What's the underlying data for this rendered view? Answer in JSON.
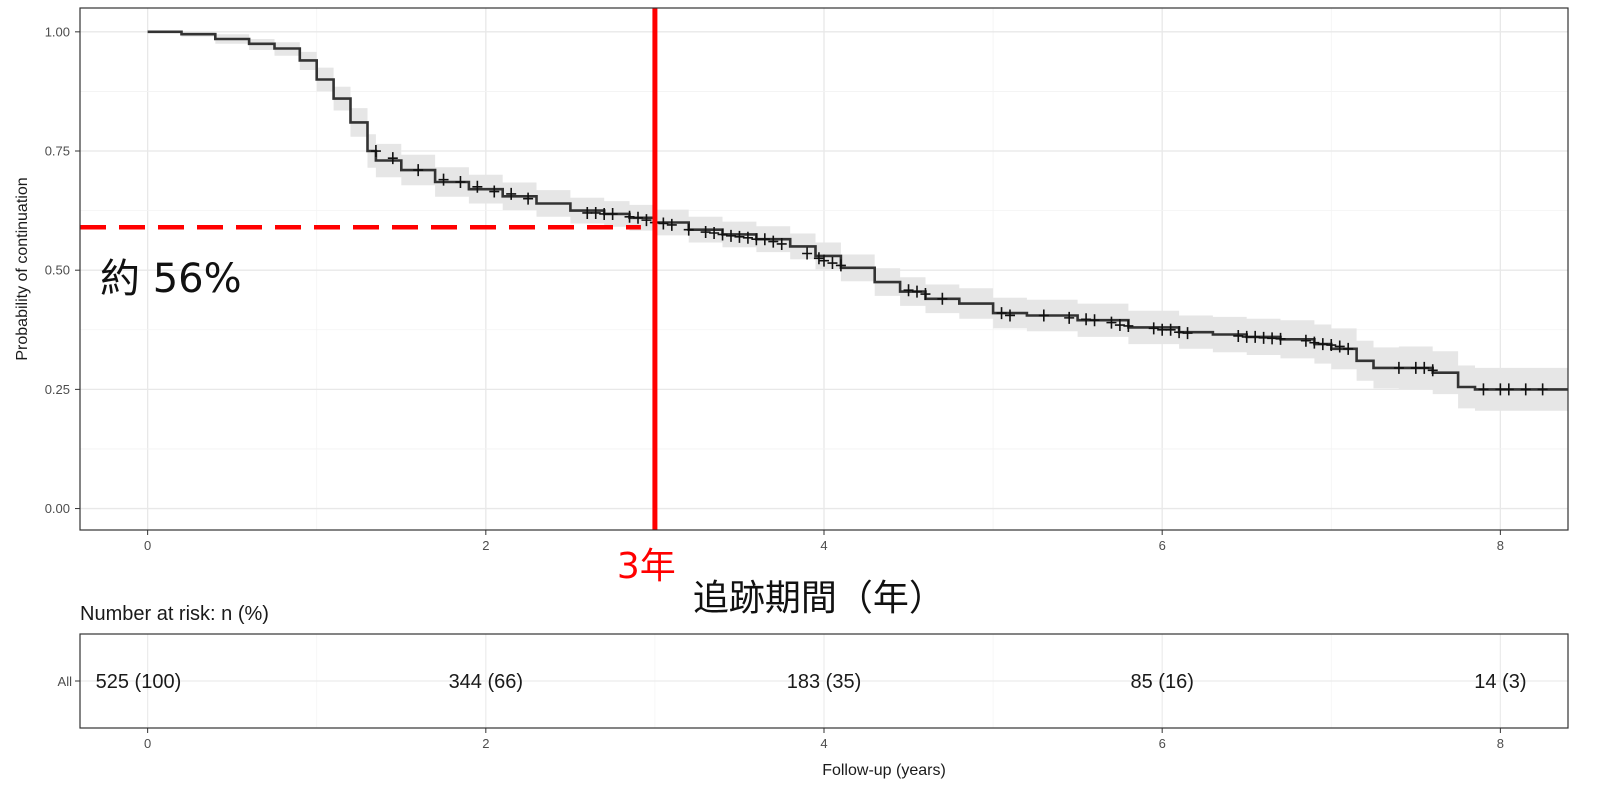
{
  "chart_data": {
    "type": "line",
    "subtype": "kaplan-meier",
    "title": "",
    "xlabel": "Follow-up (years)",
    "ylabel": "Probability of continuation",
    "xlim": [
      -0.4,
      8.4
    ],
    "ylim": [
      -0.045,
      1.05
    ],
    "x_ticks": [
      0,
      2,
      4,
      6,
      8
    ],
    "x_tick_labels": [
      "0",
      "2",
      "4",
      "6",
      "8"
    ],
    "y_ticks": [
      0.0,
      0.25,
      0.5,
      0.75,
      1.0
    ],
    "y_tick_labels": [
      "0.00",
      "0.25",
      "0.50",
      "0.75",
      "1.00"
    ],
    "grid": true,
    "series": [
      {
        "color": "#333333",
        "ci_color": "#e6e6e6",
        "x": [
          0,
          0.2,
          0.4,
          0.6,
          0.75,
          0.9,
          1.0,
          1.1,
          1.2,
          1.3,
          1.35,
          1.5,
          1.7,
          1.9,
          2.1,
          2.3,
          2.5,
          2.7,
          2.85,
          3.0,
          3.2,
          3.4,
          3.6,
          3.8,
          3.95,
          4.1,
          4.3,
          4.45,
          4.6,
          4.8,
          5.0,
          5.2,
          5.5,
          5.8,
          6.1,
          6.3,
          6.5,
          6.7,
          6.9,
          7.0,
          7.15,
          7.25,
          7.4,
          7.6,
          7.75,
          7.85,
          8.0,
          8.2,
          8.4
        ],
        "y": [
          1.0,
          0.995,
          0.985,
          0.975,
          0.965,
          0.94,
          0.9,
          0.86,
          0.81,
          0.75,
          0.73,
          0.71,
          0.685,
          0.67,
          0.655,
          0.64,
          0.625,
          0.618,
          0.61,
          0.6,
          0.585,
          0.575,
          0.565,
          0.55,
          0.53,
          0.505,
          0.475,
          0.455,
          0.44,
          0.43,
          0.41,
          0.405,
          0.395,
          0.38,
          0.37,
          0.365,
          0.36,
          0.355,
          0.345,
          0.335,
          0.31,
          0.295,
          0.295,
          0.285,
          0.255,
          0.25,
          0.25,
          0.25,
          0.25
        ],
        "ci_upper": [
          1.0,
          1.0,
          0.995,
          0.985,
          0.978,
          0.958,
          0.925,
          0.885,
          0.84,
          0.785,
          0.765,
          0.742,
          0.716,
          0.7,
          0.684,
          0.668,
          0.652,
          0.645,
          0.637,
          0.627,
          0.612,
          0.602,
          0.592,
          0.577,
          0.558,
          0.533,
          0.504,
          0.485,
          0.47,
          0.462,
          0.442,
          0.438,
          0.43,
          0.415,
          0.405,
          0.402,
          0.398,
          0.395,
          0.386,
          0.378,
          0.352,
          0.338,
          0.34,
          0.33,
          0.3,
          0.295,
          0.295,
          0.295,
          0.295
        ],
        "ci_lower": [
          1.0,
          0.99,
          0.975,
          0.962,
          0.95,
          0.92,
          0.875,
          0.835,
          0.78,
          0.715,
          0.695,
          0.678,
          0.654,
          0.64,
          0.626,
          0.612,
          0.598,
          0.591,
          0.583,
          0.573,
          0.558,
          0.548,
          0.538,
          0.523,
          0.502,
          0.477,
          0.446,
          0.425,
          0.41,
          0.398,
          0.378,
          0.372,
          0.36,
          0.345,
          0.335,
          0.328,
          0.322,
          0.315,
          0.304,
          0.292,
          0.268,
          0.252,
          0.25,
          0.24,
          0.21,
          0.205,
          0.205,
          0.205,
          0.205
        ],
        "censor_x": [
          1.35,
          1.45,
          1.6,
          1.75,
          1.85,
          1.95,
          2.05,
          2.15,
          2.25,
          2.6,
          2.65,
          2.7,
          2.75,
          2.85,
          2.9,
          2.95,
          3.0,
          3.05,
          3.1,
          3.2,
          3.3,
          3.35,
          3.4,
          3.45,
          3.5,
          3.55,
          3.6,
          3.65,
          3.7,
          3.75,
          3.9,
          3.97,
          4.0,
          4.05,
          4.1,
          4.5,
          4.55,
          4.6,
          4.7,
          5.05,
          5.1,
          5.3,
          5.45,
          5.55,
          5.6,
          5.7,
          5.75,
          5.8,
          5.95,
          6.0,
          6.05,
          6.1,
          6.15,
          6.45,
          6.5,
          6.55,
          6.6,
          6.65,
          6.7,
          6.85,
          6.9,
          6.95,
          7.0,
          7.05,
          7.1,
          7.4,
          7.5,
          7.55,
          7.6,
          7.9,
          8.0,
          8.05,
          8.15,
          8.25
        ],
        "censor_y": [
          0.75,
          0.735,
          0.71,
          0.69,
          0.685,
          0.675,
          0.665,
          0.66,
          0.65,
          0.62,
          0.62,
          0.618,
          0.618,
          0.612,
          0.61,
          0.605,
          0.6,
          0.598,
          0.595,
          0.585,
          0.58,
          0.578,
          0.575,
          0.572,
          0.57,
          0.568,
          0.565,
          0.565,
          0.56,
          0.555,
          0.535,
          0.525,
          0.52,
          0.515,
          0.51,
          0.458,
          0.455,
          0.45,
          0.44,
          0.41,
          0.405,
          0.405,
          0.4,
          0.397,
          0.395,
          0.39,
          0.385,
          0.383,
          0.378,
          0.375,
          0.375,
          0.37,
          0.368,
          0.362,
          0.36,
          0.36,
          0.358,
          0.357,
          0.356,
          0.352,
          0.348,
          0.345,
          0.343,
          0.34,
          0.335,
          0.295,
          0.295,
          0.295,
          0.29,
          0.25,
          0.25,
          0.25,
          0.25,
          0.25
        ]
      }
    ],
    "annotations": {
      "percent_text": "約 56%",
      "percent_y": 0.59,
      "marker_x": 3.0,
      "marker_label": "3年",
      "jp_axis_label": "追跡期間（年）"
    },
    "risk_table": {
      "title": "Number at risk: n (%)",
      "row_label": "All",
      "times": [
        0,
        2,
        4,
        6,
        8
      ],
      "values": [
        "525 (100)",
        "344 (66)",
        "183 (35)",
        "85 (16)",
        "14 (3)"
      ]
    }
  }
}
